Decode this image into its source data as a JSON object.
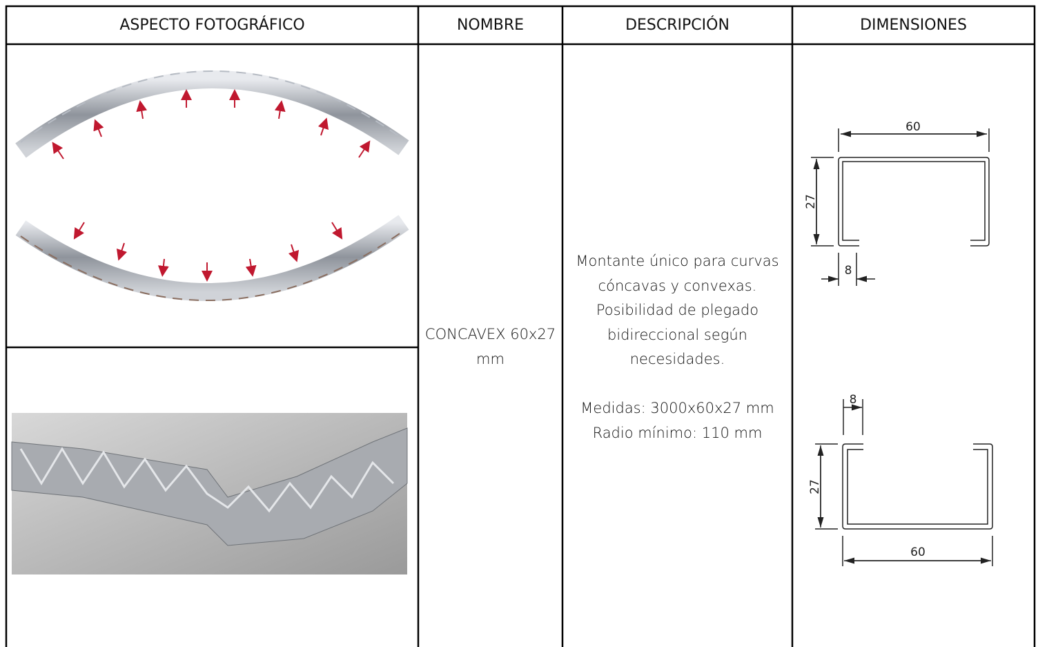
{
  "table": {
    "header": [
      "ASPECTO FOTOGRÁFICO",
      "NOMBRE",
      "DESCRIPCIÓN",
      "DIMENSIONES"
    ],
    "name": "CONCAVEX 60x27 mm",
    "description": {
      "paragraph_1": [
        "Montante único para curvas",
        "cóncavas y convexas.",
        "Posibilidad de plegado",
        "bidireccional según",
        "necesidades."
      ],
      "paragraph_2": [
        "Medidas: 3000x60x27 mm",
        "Radio mínimo: 110 mm"
      ]
    },
    "dimensions": [
      {
        "width": "60",
        "height": "27",
        "lip": "8"
      },
      {
        "lip": "8",
        "height": "27",
        "width": "60"
      }
    ]
  }
}
